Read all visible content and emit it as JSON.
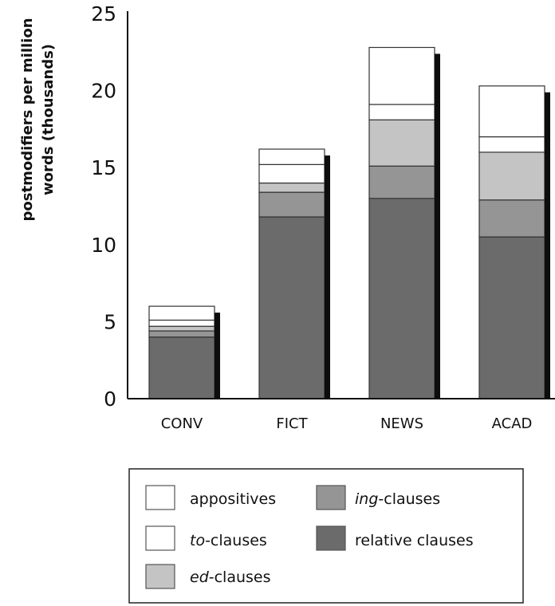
{
  "chart_data": {
    "type": "bar",
    "stacked": true,
    "categories": [
      "CONV",
      "FICT",
      "NEWS",
      "ACAD"
    ],
    "ylabel_line1": "postmodifiers per million",
    "ylabel_line2": "words (thousands)",
    "ylim": [
      0,
      25
    ],
    "yticks": [
      "0",
      "5",
      "10",
      "15",
      "20",
      "25"
    ],
    "series": [
      {
        "name": "relative clauses",
        "color": "#6b6b6b",
        "values": [
          4.0,
          11.8,
          13.0,
          10.5
        ]
      },
      {
        "name": "ing-clauses",
        "color": "#959595",
        "values": [
          0.4,
          1.6,
          2.1,
          2.4
        ]
      },
      {
        "name": "ed-clauses",
        "color": "#c4c4c4",
        "values": [
          0.3,
          0.6,
          3.0,
          3.1
        ]
      },
      {
        "name": "to-clauses",
        "color": "#ffffff",
        "values": [
          0.4,
          1.2,
          1.0,
          1.0
        ]
      },
      {
        "name": "appositives",
        "color": "#ffffff",
        "values": [
          0.9,
          1.0,
          3.7,
          3.3
        ]
      }
    ]
  },
  "legend": {
    "items": [
      {
        "italic": "",
        "rest": "appositives",
        "color": "#ffffff"
      },
      {
        "italic": "to",
        "rest": "-clauses",
        "color": "#ffffff"
      },
      {
        "italic": "ed",
        "rest": "-clauses",
        "color": "#c4c4c4"
      },
      {
        "italic": "ing",
        "rest": "-clauses",
        "color": "#959595"
      },
      {
        "italic": "",
        "rest": "relative clauses",
        "color": "#6b6b6b"
      }
    ]
  }
}
